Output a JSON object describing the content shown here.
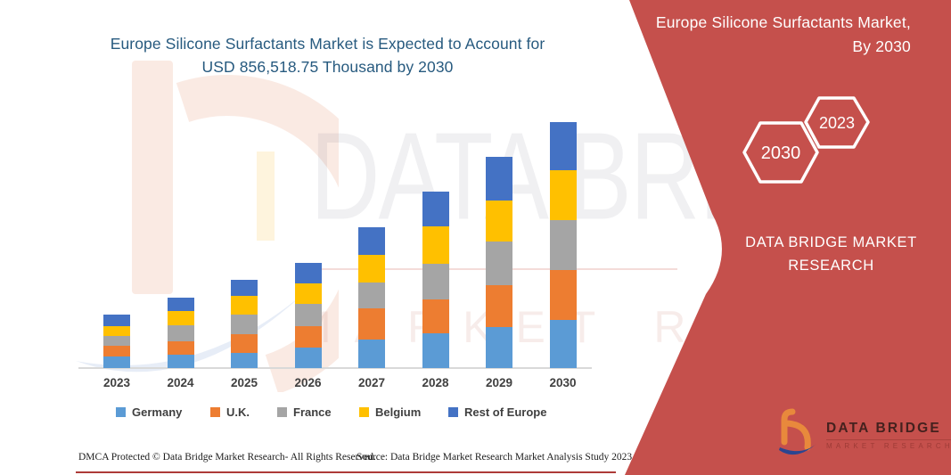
{
  "main_title": {
    "line1": "Europe Silicone Surfactants Market is Expected to Account for",
    "line2": "USD 856,518.75 Thousand by 2030",
    "color": "#275A7F"
  },
  "side_panel": {
    "background_color": "#C5504C",
    "heading_line1": "Europe Silicone Surfactants Market,",
    "heading_line2": "By 2030",
    "badges": {
      "forecast_year": "2030",
      "base_year": "2023"
    },
    "brand_line1": "DATA BRIDGE MARKET",
    "brand_line2": "RESEARCH",
    "logo": {
      "name": "DATA BRIDGE",
      "tagline": "MARKET RESEARCH"
    }
  },
  "watermark": {
    "line1": "DATA BRIDGE",
    "line2": "MARKET RESEARCH"
  },
  "chart_data": {
    "type": "bar",
    "stacked": true,
    "title": "Europe Silicone Surfactants Market is Expected to Account for USD 856,518.75 Thousand by 2030",
    "unit": "USD Thousand",
    "categories": [
      "2023",
      "2024",
      "2025",
      "2026",
      "2027",
      "2028",
      "2029",
      "2030"
    ],
    "series": [
      {
        "name": "Germany",
        "color": "#5B9BD5",
        "values": [
          40000,
          46500,
          53000,
          72500,
          98500,
          121000,
          143000,
          168500
        ]
      },
      {
        "name": "U.K.",
        "color": "#ED7D31",
        "values": [
          38000,
          45500,
          64000,
          74500,
          108500,
          117000,
          147000,
          173000
        ]
      },
      {
        "name": "France",
        "color": "#A5A5A5",
        "values": [
          35000,
          58000,
          70500,
          75500,
          91000,
          124000,
          151000,
          174000
        ]
      },
      {
        "name": "Belgium",
        "color": "#FFC000",
        "values": [
          33000,
          49500,
          64000,
          72500,
          95500,
          132500,
          143500,
          172500
        ]
      },
      {
        "name": "Rest of Europe",
        "color": "#4472C4",
        "values": [
          39000,
          46500,
          57000,
          70500,
          98500,
          119000,
          151000,
          168518.75
        ]
      }
    ],
    "totals_estimated": [
      185000,
      246000,
      308500,
      365500,
      492000,
      613500,
      735500,
      856518.75
    ],
    "only_labeled_value": 856518.75,
    "values_estimated_from_bar_heights": true,
    "ylim": [
      0,
      900000
    ],
    "axis": "hidden",
    "grid": false,
    "legend_position": "bottom"
  },
  "footer": {
    "dmca": "DMCA Protected © Data Bridge Market Research-  All Rights Reserved.",
    "source": "Source: Data Bridge Market Research  Market Analysis Study 2023"
  }
}
